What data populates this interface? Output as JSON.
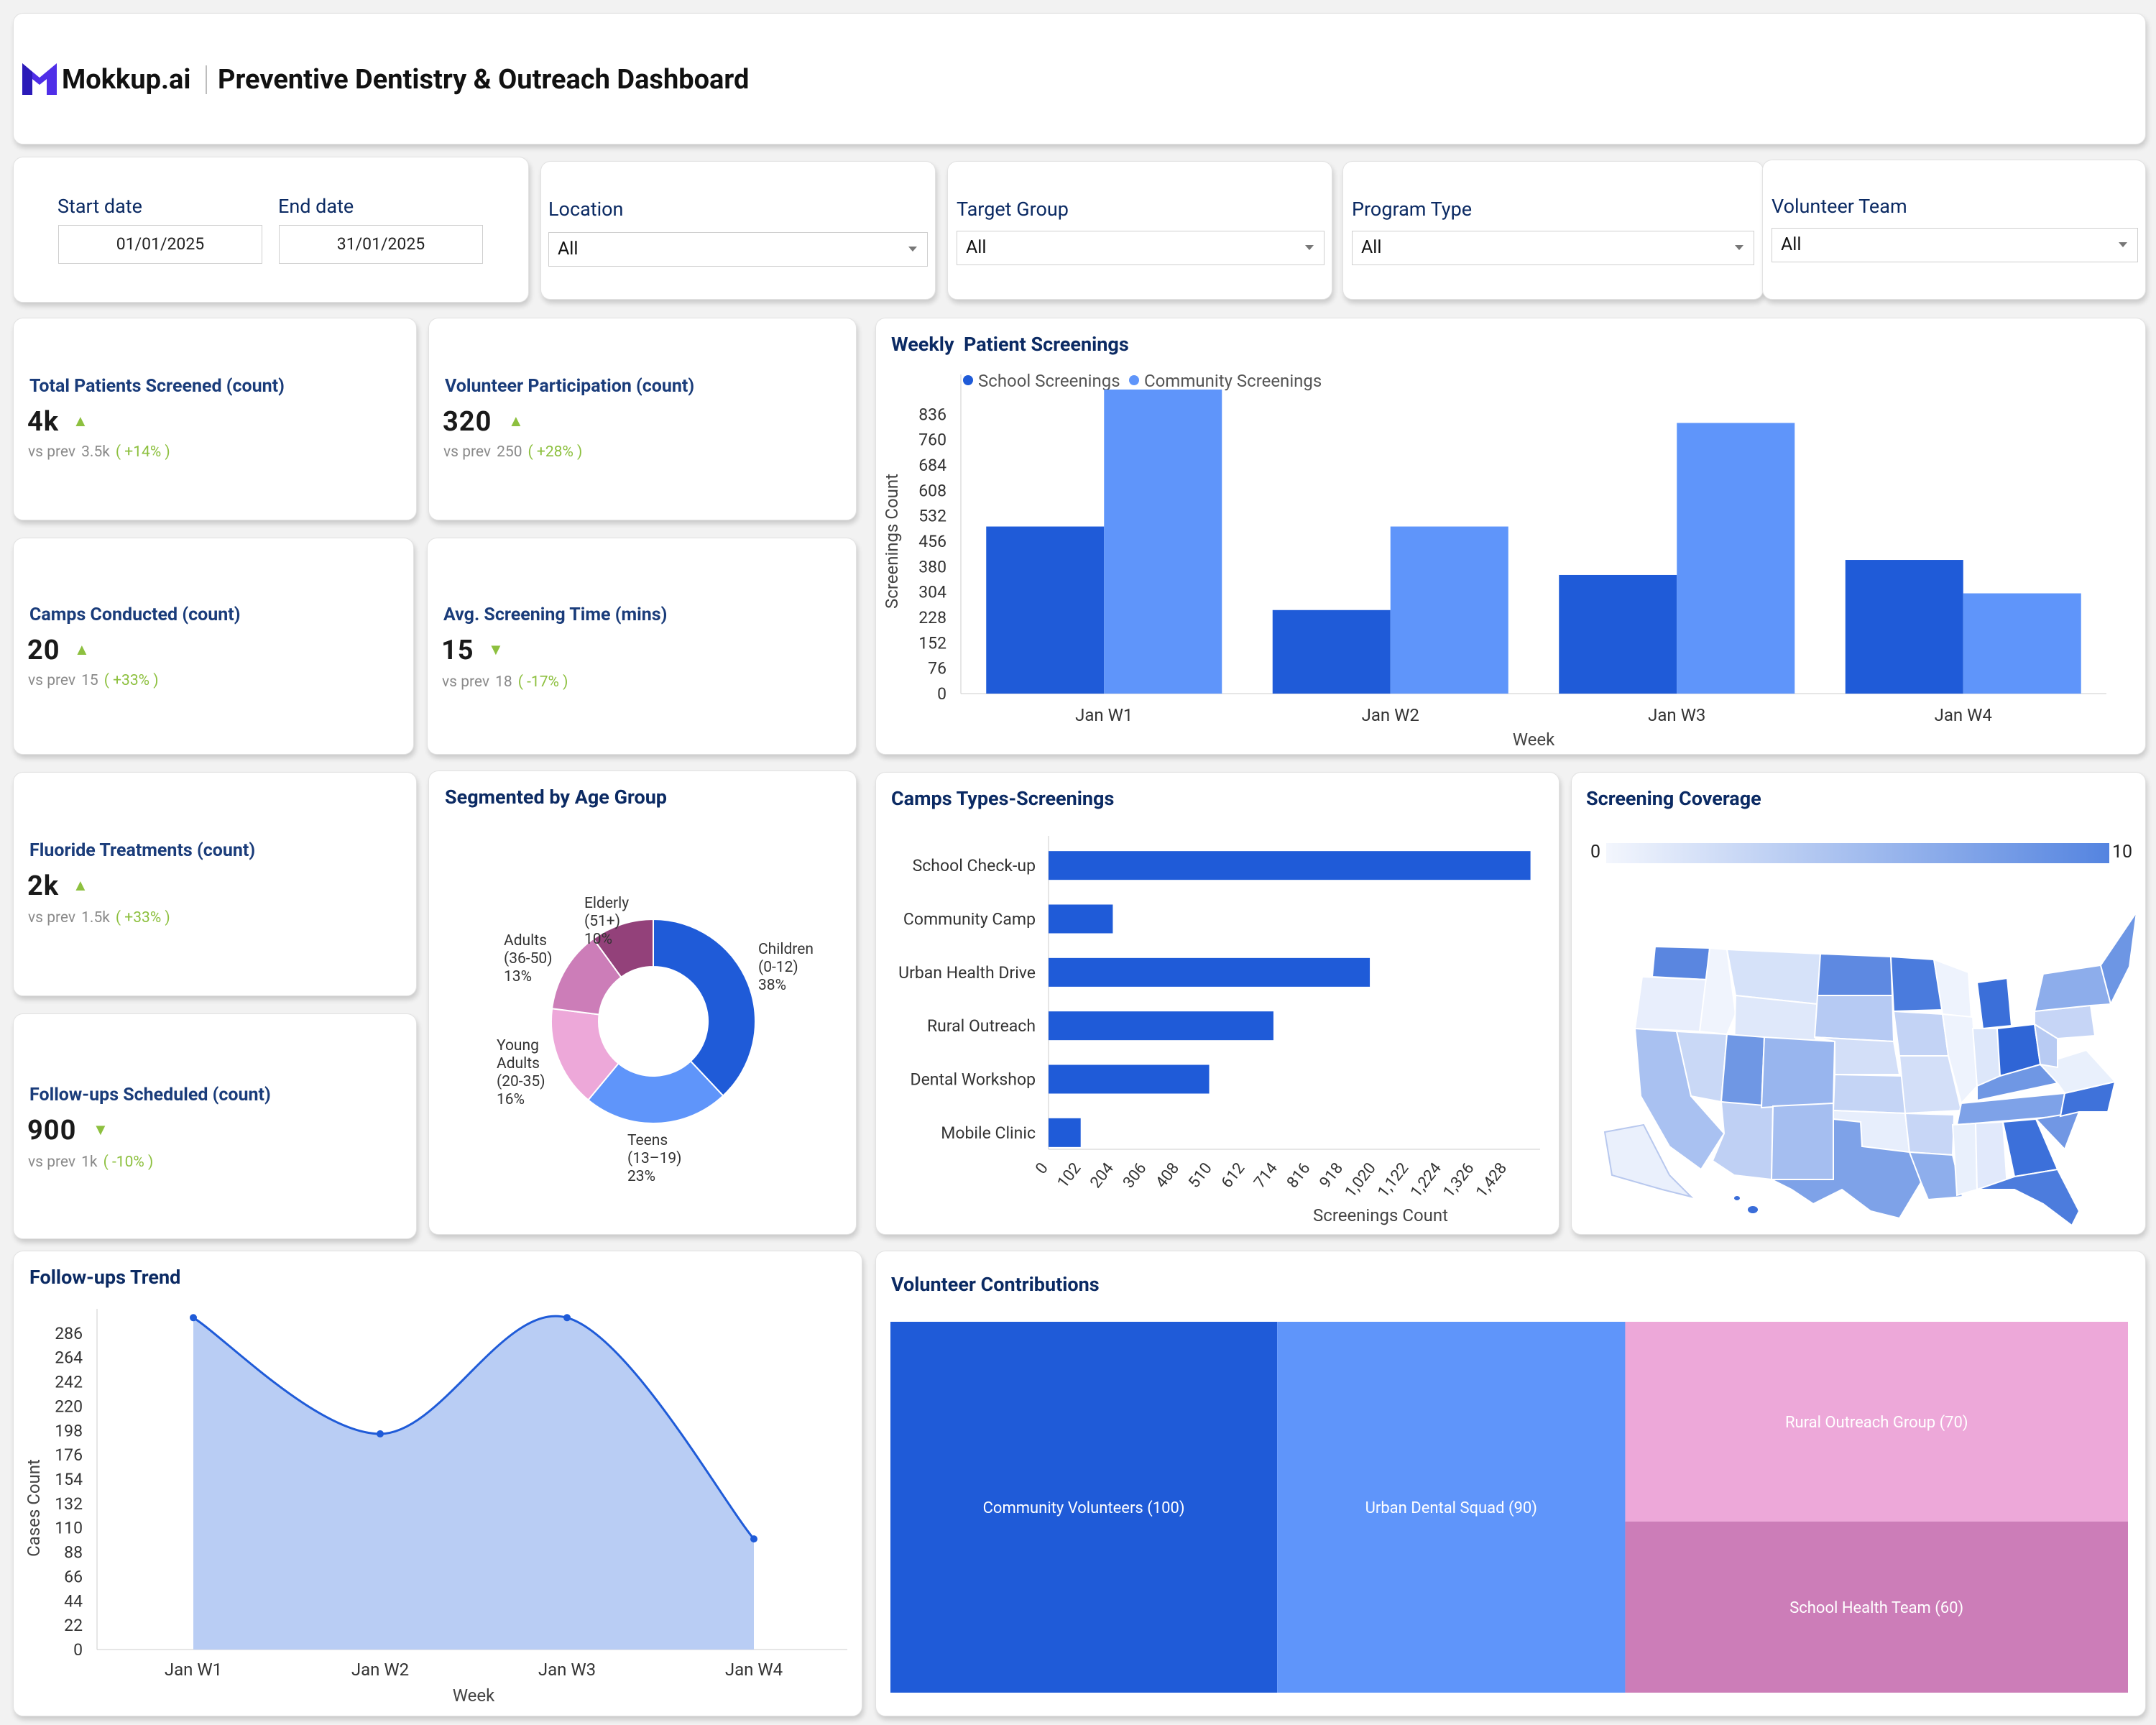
{
  "header": {
    "brand": "Mokkup.ai",
    "title": "Preventive Dentistry & Outreach Dashboard"
  },
  "filters": {
    "start_label": "Start date",
    "start_value": "01/01/2025",
    "end_label": "End date",
    "end_value": "31/01/2025",
    "location_label": "Location",
    "location_value": "All",
    "target_label": "Target Group",
    "target_value": "All",
    "program_label": "Program Type",
    "program_value": "All",
    "volunteer_label": "Volunteer Team",
    "volunteer_value": "All"
  },
  "kpis": [
    {
      "label": "Total Patients Screened (count)",
      "value": "4k",
      "trend": "up",
      "vs": "vs prev",
      "prev": "3.5k",
      "delta": "( +14% )"
    },
    {
      "label": "Volunteer Participation (count)",
      "value": "320",
      "trend": "up",
      "vs": "vs prev",
      "prev": "250",
      "delta": "( +28% )"
    },
    {
      "label": "Camps Conducted (count)",
      "value": "20",
      "trend": "up",
      "vs": "vs prev",
      "prev": "15",
      "delta": "( +33% )"
    },
    {
      "label": "Avg. Screening Time (mins)",
      "value": "15",
      "trend": "down",
      "vs": "vs prev",
      "prev": "18",
      "delta": "( -17% )"
    },
    {
      "label": "Fluoride Treatments (count)",
      "value": "2k",
      "trend": "up",
      "vs": "vs prev",
      "prev": "1.5k",
      "delta": "( +33% )"
    },
    {
      "label": "Follow-ups Scheduled (count)",
      "value": "900",
      "trend": "down",
      "vs": "vs prev",
      "prev": "1k",
      "delta": "( -10% )"
    }
  ],
  "colors": {
    "dark_blue": "#1f5bd8",
    "light_blue": "#5f95fa",
    "accent_green": "#8dc03f",
    "title_navy": "#0b2a63"
  },
  "chart_data": [
    {
      "type": "bar",
      "title": "Weekly  Patient Screenings",
      "categories": [
        "Jan W1",
        "Jan W2",
        "Jan W3",
        "Jan W4"
      ],
      "series": [
        {
          "name": "School Screenings",
          "values": [
            500,
            250,
            355,
            400
          ]
        },
        {
          "name": "Community Screenings",
          "values": [
            910,
            500,
            810,
            300
          ]
        }
      ],
      "xlabel": "Week",
      "ylabel": "Screenings Count",
      "yticks": [
        "0",
        "76",
        "152",
        "228",
        "304",
        "380",
        "456",
        "532",
        "608",
        "684",
        "760",
        "836"
      ],
      "ylim": [
        0,
        912
      ],
      "legend": "top-left"
    },
    {
      "type": "pie",
      "title": "Segmented by Age Group",
      "slices": [
        {
          "l1": "Children",
          "l2": "(0-12)",
          "l3": "",
          "pct": "38%",
          "value": 38,
          "color": "#1f5bd8"
        },
        {
          "l1": "Teens",
          "l2": "(13–19)",
          "l3": "",
          "pct": "23%",
          "value": 23,
          "color": "#5f95fa"
        },
        {
          "l1": "Young",
          "l2": "Adults",
          "l3": "(20-35)",
          "pct": "16%",
          "value": 16,
          "color": "#eda8d9"
        },
        {
          "l1": "Adults",
          "l2": "(36-50)",
          "l3": "",
          "pct": "13%",
          "value": 13,
          "color": "#cc7db8"
        },
        {
          "l1": "Elderly",
          "l2": "(51+)",
          "l3": "",
          "pct": "10%",
          "value": 10,
          "color": "#93417a"
        }
      ]
    },
    {
      "type": "bar",
      "orientation": "horizontal",
      "title": "Camps Types-Screenings",
      "categories": [
        "School Check-up",
        "Community Camp",
        "Urban Health Drive",
        "Rural Outreach",
        "Dental Workshop",
        "Mobile Clinic"
      ],
      "values": [
        1500,
        200,
        1000,
        700,
        500,
        100
      ],
      "xlabel": "Screenings Count",
      "xticks": [
        "0",
        "102",
        "204",
        "306",
        "408",
        "510",
        "612",
        "714",
        "816",
        "918",
        "1,020",
        "1,122",
        "1,224",
        "1,326",
        "1,428"
      ],
      "xlim": [
        0,
        1530
      ]
    },
    {
      "type": "area",
      "title": "Follow-ups Trend",
      "categories": [
        "Jan W1",
        "Jan W2",
        "Jan W3",
        "Jan W4"
      ],
      "values": [
        300,
        195,
        300,
        100
      ],
      "xlabel": "Week",
      "ylabel": "Cases Count",
      "yticks": [
        "0",
        "22",
        "44",
        "66",
        "88",
        "110",
        "132",
        "154",
        "176",
        "198",
        "220",
        "242",
        "264",
        "286"
      ],
      "ylim": [
        0,
        308
      ]
    },
    {
      "type": "treemap",
      "title": "Volunteer Contributions",
      "items": [
        {
          "label": "Community Volunteers (100)",
          "value": 100,
          "color": "#1f5bd8"
        },
        {
          "label": "Urban Dental Squad (90)",
          "value": 90,
          "color": "#5f95fa"
        },
        {
          "label": "Rural Outreach Group (70)",
          "value": 70,
          "color": "#eda8d9"
        },
        {
          "label": "School Health Team (60)",
          "value": 60,
          "color": "#cc7db8"
        }
      ]
    },
    {
      "type": "heatmap",
      "title": "Screening Coverage",
      "scale": {
        "min": "0",
        "max": "10"
      }
    }
  ]
}
